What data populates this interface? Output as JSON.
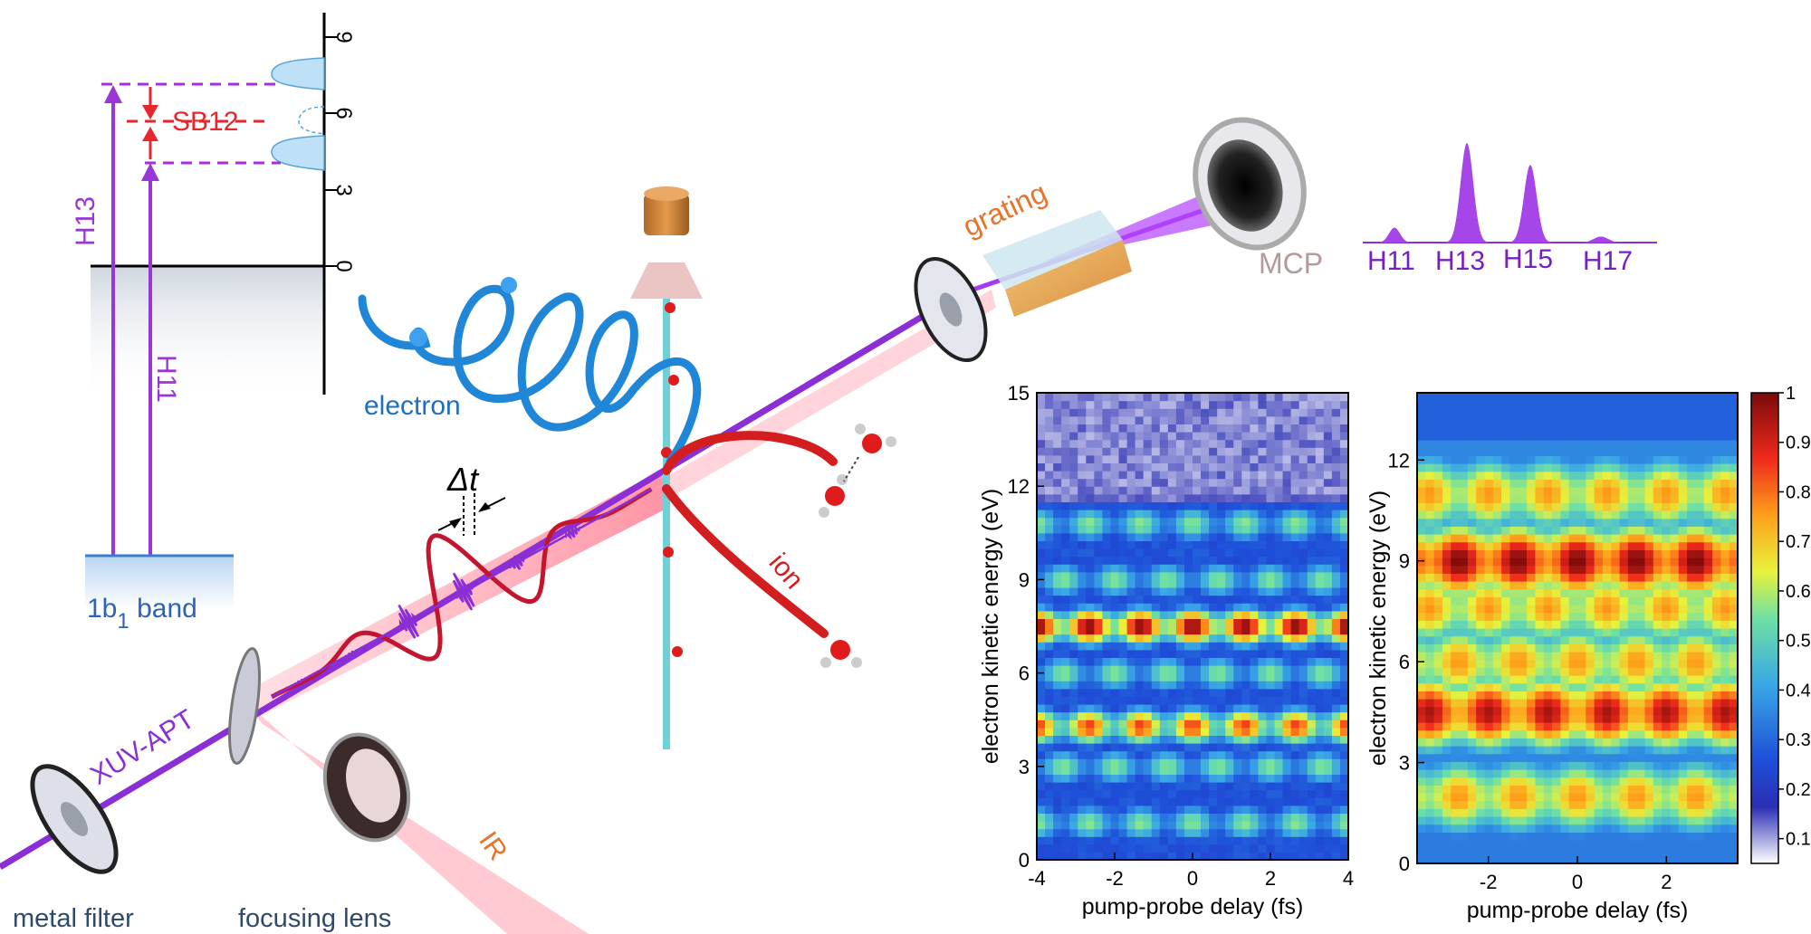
{
  "energy_diagram": {
    "ticks": [
      "0",
      "3",
      "6",
      "9"
    ],
    "sideband": "SB12",
    "harmonic_a": "H13",
    "harmonic_b": "H11",
    "band_main": "1b",
    "band_sub": "1",
    "band_suffix": " band"
  },
  "setup": {
    "delay_symbol": "Δt",
    "electron": "electron",
    "ion": "ion",
    "grating": "grating",
    "detector": "MCP",
    "beam_xuv": "XUV-APT",
    "beam_ir": "IR",
    "filter": "metal filter",
    "lens": "focusing lens"
  },
  "spectrum": {
    "labels": [
      "H11",
      "H13",
      "H15",
      "H17"
    ],
    "peaks": [
      0.15,
      1.0,
      0.78,
      0.06
    ]
  },
  "chart_data": [
    {
      "type": "heatmap",
      "xlabel": "pump-probe delay (fs)",
      "ylabel": "electron kinetic energy (eV)",
      "xlim": [
        -4,
        4
      ],
      "ylim": [
        0,
        15
      ],
      "xticks": [
        "-4",
        "-2",
        "0",
        "2",
        "4"
      ],
      "yticks": [
        "0",
        "3",
        "6",
        "9",
        "12",
        "15"
      ],
      "bands_eV": [
        1.2,
        3.0,
        4.3,
        6.0,
        7.5,
        9.0,
        10.8
      ],
      "oscillation_period_fs": 1.33
    },
    {
      "type": "heatmap",
      "xlabel": "pump-probe delay (fs)",
      "ylabel": "electron kinetic energy (eV)",
      "xlim": [
        -3.6,
        3.6
      ],
      "ylim": [
        0,
        14
      ],
      "xticks": [
        "-2",
        "0",
        "2"
      ],
      "yticks": [
        "0",
        "3",
        "6",
        "9",
        "12"
      ],
      "bands_eV": [
        2.0,
        4.5,
        6.0,
        7.6,
        9.0,
        11.0
      ],
      "oscillation_period_fs": 1.33,
      "colorbar_ticks": [
        "0.1",
        "0.2",
        "0.3",
        "0.4",
        "0.5",
        "0.6",
        "0.7",
        "0.8",
        "0.9",
        "1"
      ]
    }
  ]
}
